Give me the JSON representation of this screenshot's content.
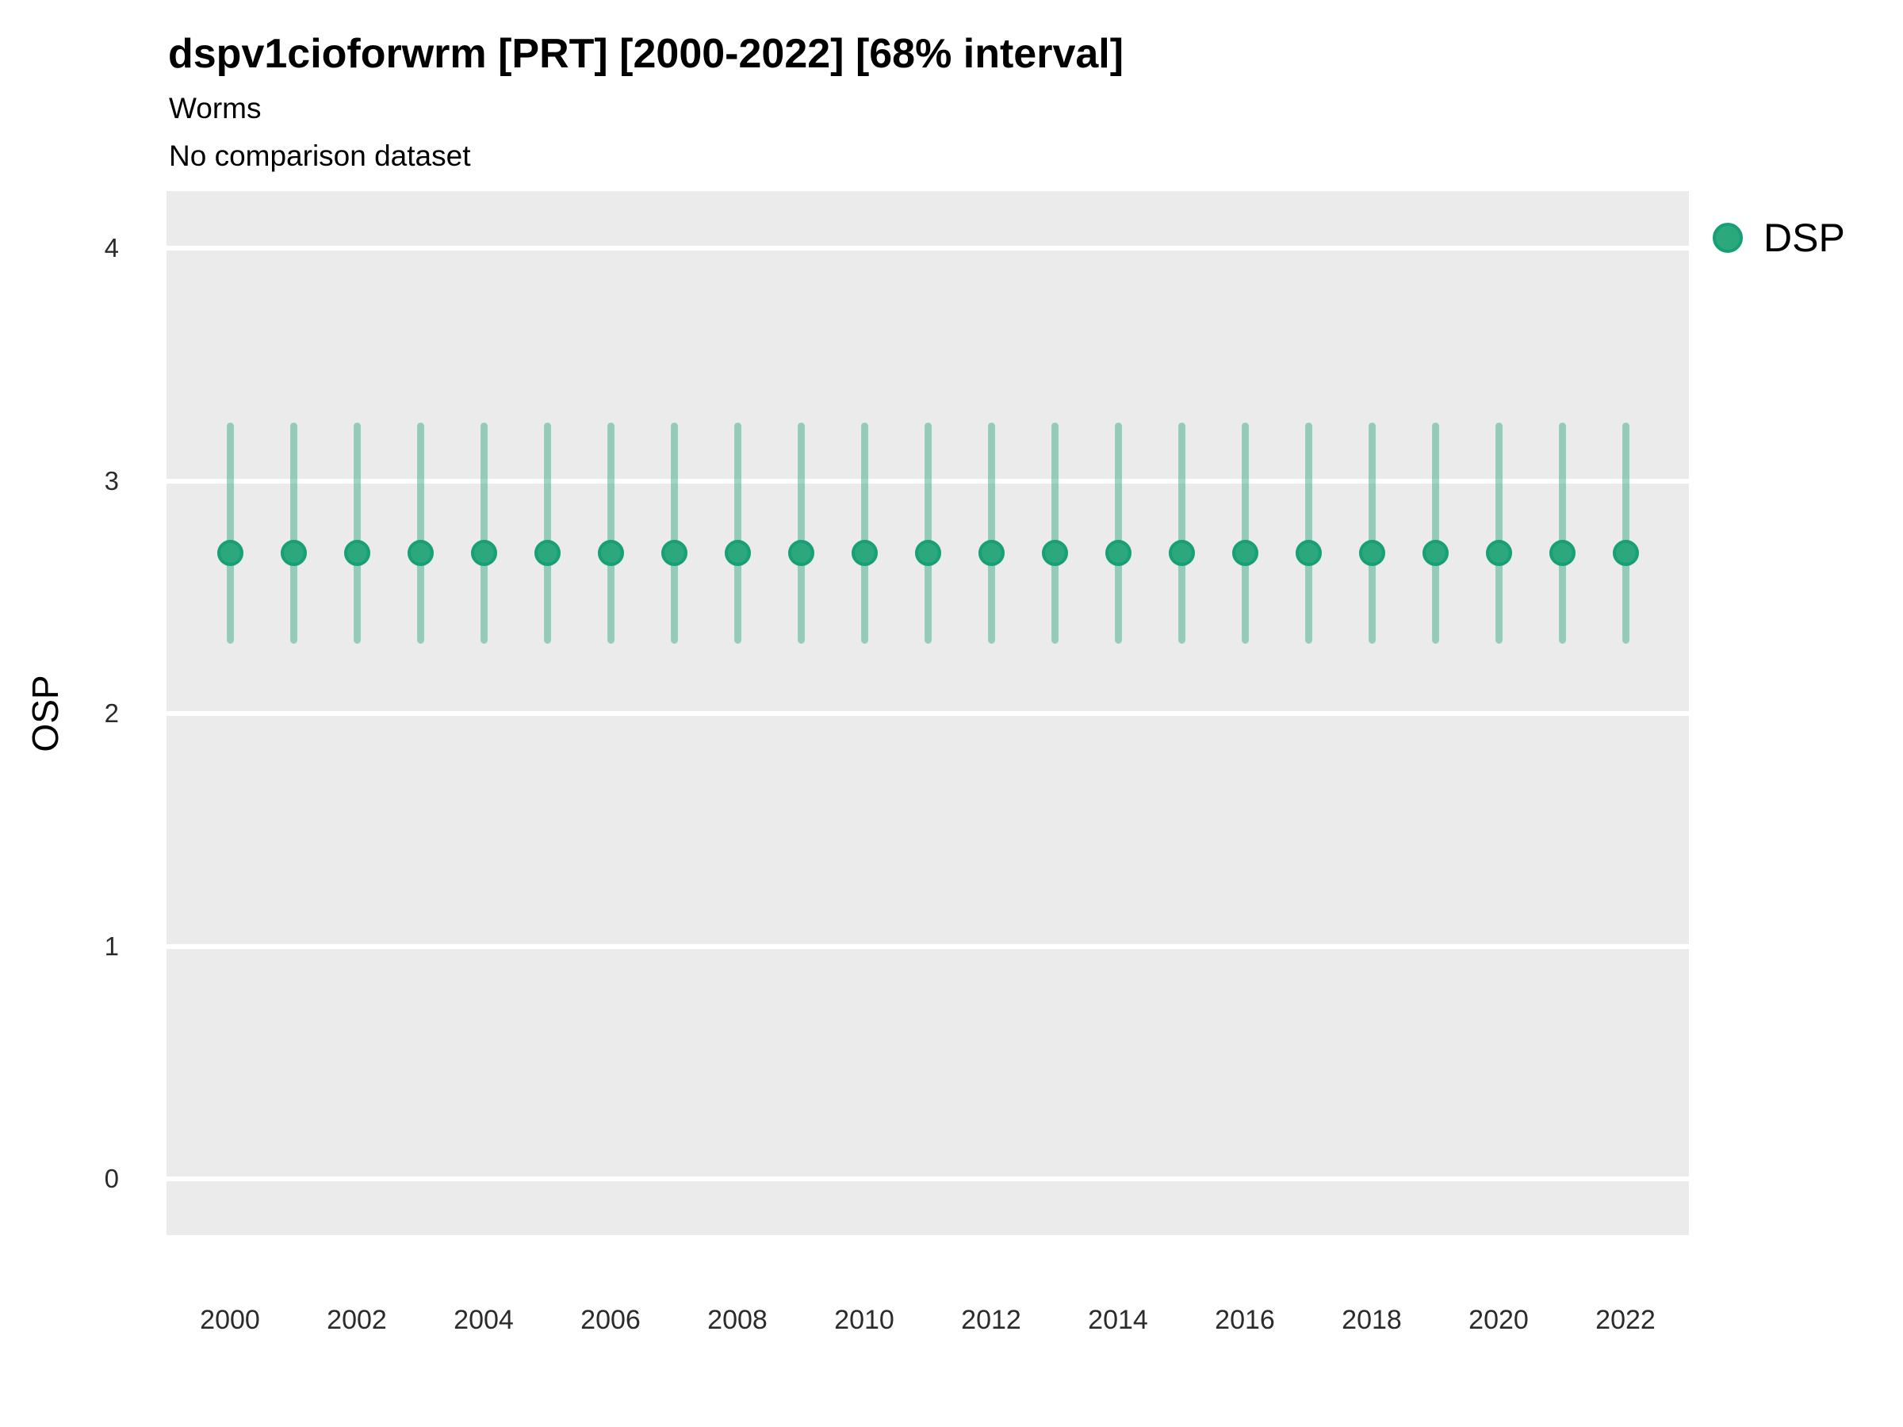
{
  "header": {
    "title": "dspv1cioforwrm [PRT] [2000-2022] [68% interval]",
    "subtitle": "Worms",
    "comparison_note": "No comparison dataset"
  },
  "legend": {
    "position": "right-top",
    "items": [
      {
        "label": "DSP",
        "marker": "circle"
      }
    ]
  },
  "colors": {
    "point_fill": "#2BA87C",
    "point_stroke": "#17A077",
    "interval_line": "rgba(44,167,125,0.45)",
    "panel_bg": "#EBEBEB",
    "gridline": "#FFFFFF",
    "tick_label": "#2B2B2B"
  },
  "chart_data": {
    "type": "scatter",
    "title": "dspv1cioforwrm [PRT] [2000-2022] [68% interval]",
    "subtitle": "Worms",
    "note": "No comparison dataset",
    "interval_label": "68% interval",
    "xlabel": "",
    "ylabel": "OSP",
    "ylim": [
      -0.24,
      4.25
    ],
    "grid": "horizontal-major-only",
    "legend_position": "right-top",
    "x": [
      2000,
      2001,
      2002,
      2003,
      2004,
      2005,
      2006,
      2007,
      2008,
      2009,
      2010,
      2011,
      2012,
      2013,
      2014,
      2015,
      2016,
      2017,
      2018,
      2019,
      2020,
      2021,
      2022
    ],
    "x_tick_labels": [
      "2000",
      "2002",
      "2004",
      "2006",
      "2008",
      "2010",
      "2012",
      "2014",
      "2016",
      "2018",
      "2020",
      "2022"
    ],
    "y_tick_labels": [
      "0",
      "1",
      "2",
      "3",
      "4"
    ],
    "y_ticks": [
      0,
      1,
      2,
      3,
      4
    ],
    "series": [
      {
        "name": "DSP",
        "values": [
          2.69,
          2.69,
          2.69,
          2.69,
          2.69,
          2.69,
          2.69,
          2.69,
          2.69,
          2.69,
          2.69,
          2.69,
          2.69,
          2.69,
          2.69,
          2.69,
          2.69,
          2.69,
          2.69,
          2.69,
          2.69,
          2.69,
          2.69
        ],
        "interval_low": [
          2.3,
          2.3,
          2.3,
          2.3,
          2.3,
          2.3,
          2.3,
          2.3,
          2.3,
          2.3,
          2.3,
          2.3,
          2.3,
          2.3,
          2.3,
          2.3,
          2.3,
          2.3,
          2.3,
          2.3,
          2.3,
          2.3,
          2.3
        ],
        "interval_high": [
          3.25,
          3.25,
          3.25,
          3.25,
          3.25,
          3.25,
          3.25,
          3.25,
          3.25,
          3.25,
          3.25,
          3.25,
          3.25,
          3.25,
          3.25,
          3.25,
          3.25,
          3.25,
          3.25,
          3.25,
          3.25,
          3.25,
          3.25
        ]
      }
    ]
  }
}
